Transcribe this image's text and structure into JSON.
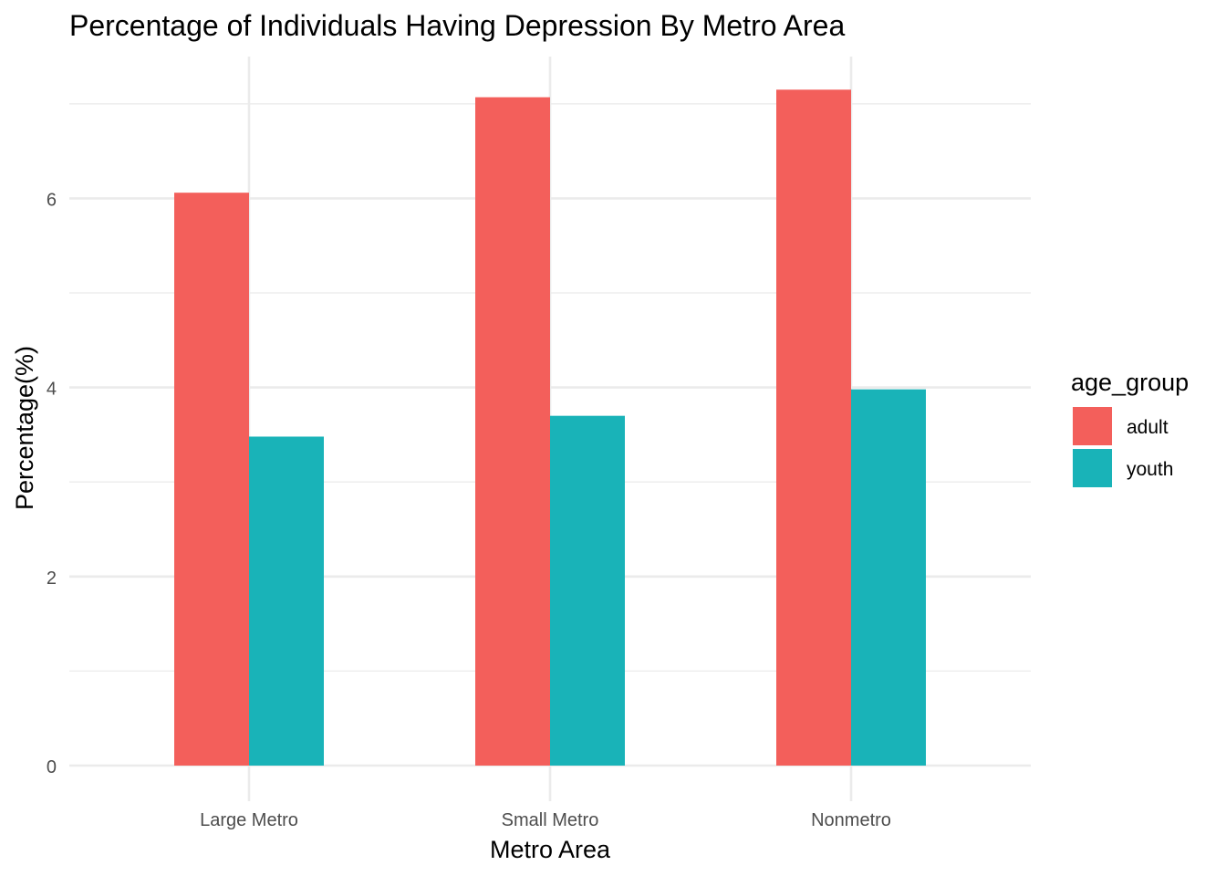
{
  "chart_data": {
    "type": "bar",
    "title": "Percentage of Individuals Having Depression By Metro Area",
    "xlabel": "Metro Area",
    "ylabel": "Percentage(%)",
    "categories": [
      "Large Metro",
      "Small Metro",
      "Nonmetro"
    ],
    "series": [
      {
        "name": "adult",
        "color": "#f35f5b",
        "values": [
          6.06,
          7.07,
          7.15
        ]
      },
      {
        "name": "youth",
        "color": "#19b3b8",
        "values": [
          3.48,
          3.7,
          3.98
        ]
      }
    ],
    "ylim": [
      0,
      7.5
    ],
    "y_ticks": [
      0,
      2,
      4,
      6
    ],
    "y_ticks_labels": [
      "0",
      "2",
      "4",
      "6"
    ],
    "grid": true,
    "legend": {
      "title": "age_group",
      "position": "right"
    }
  }
}
